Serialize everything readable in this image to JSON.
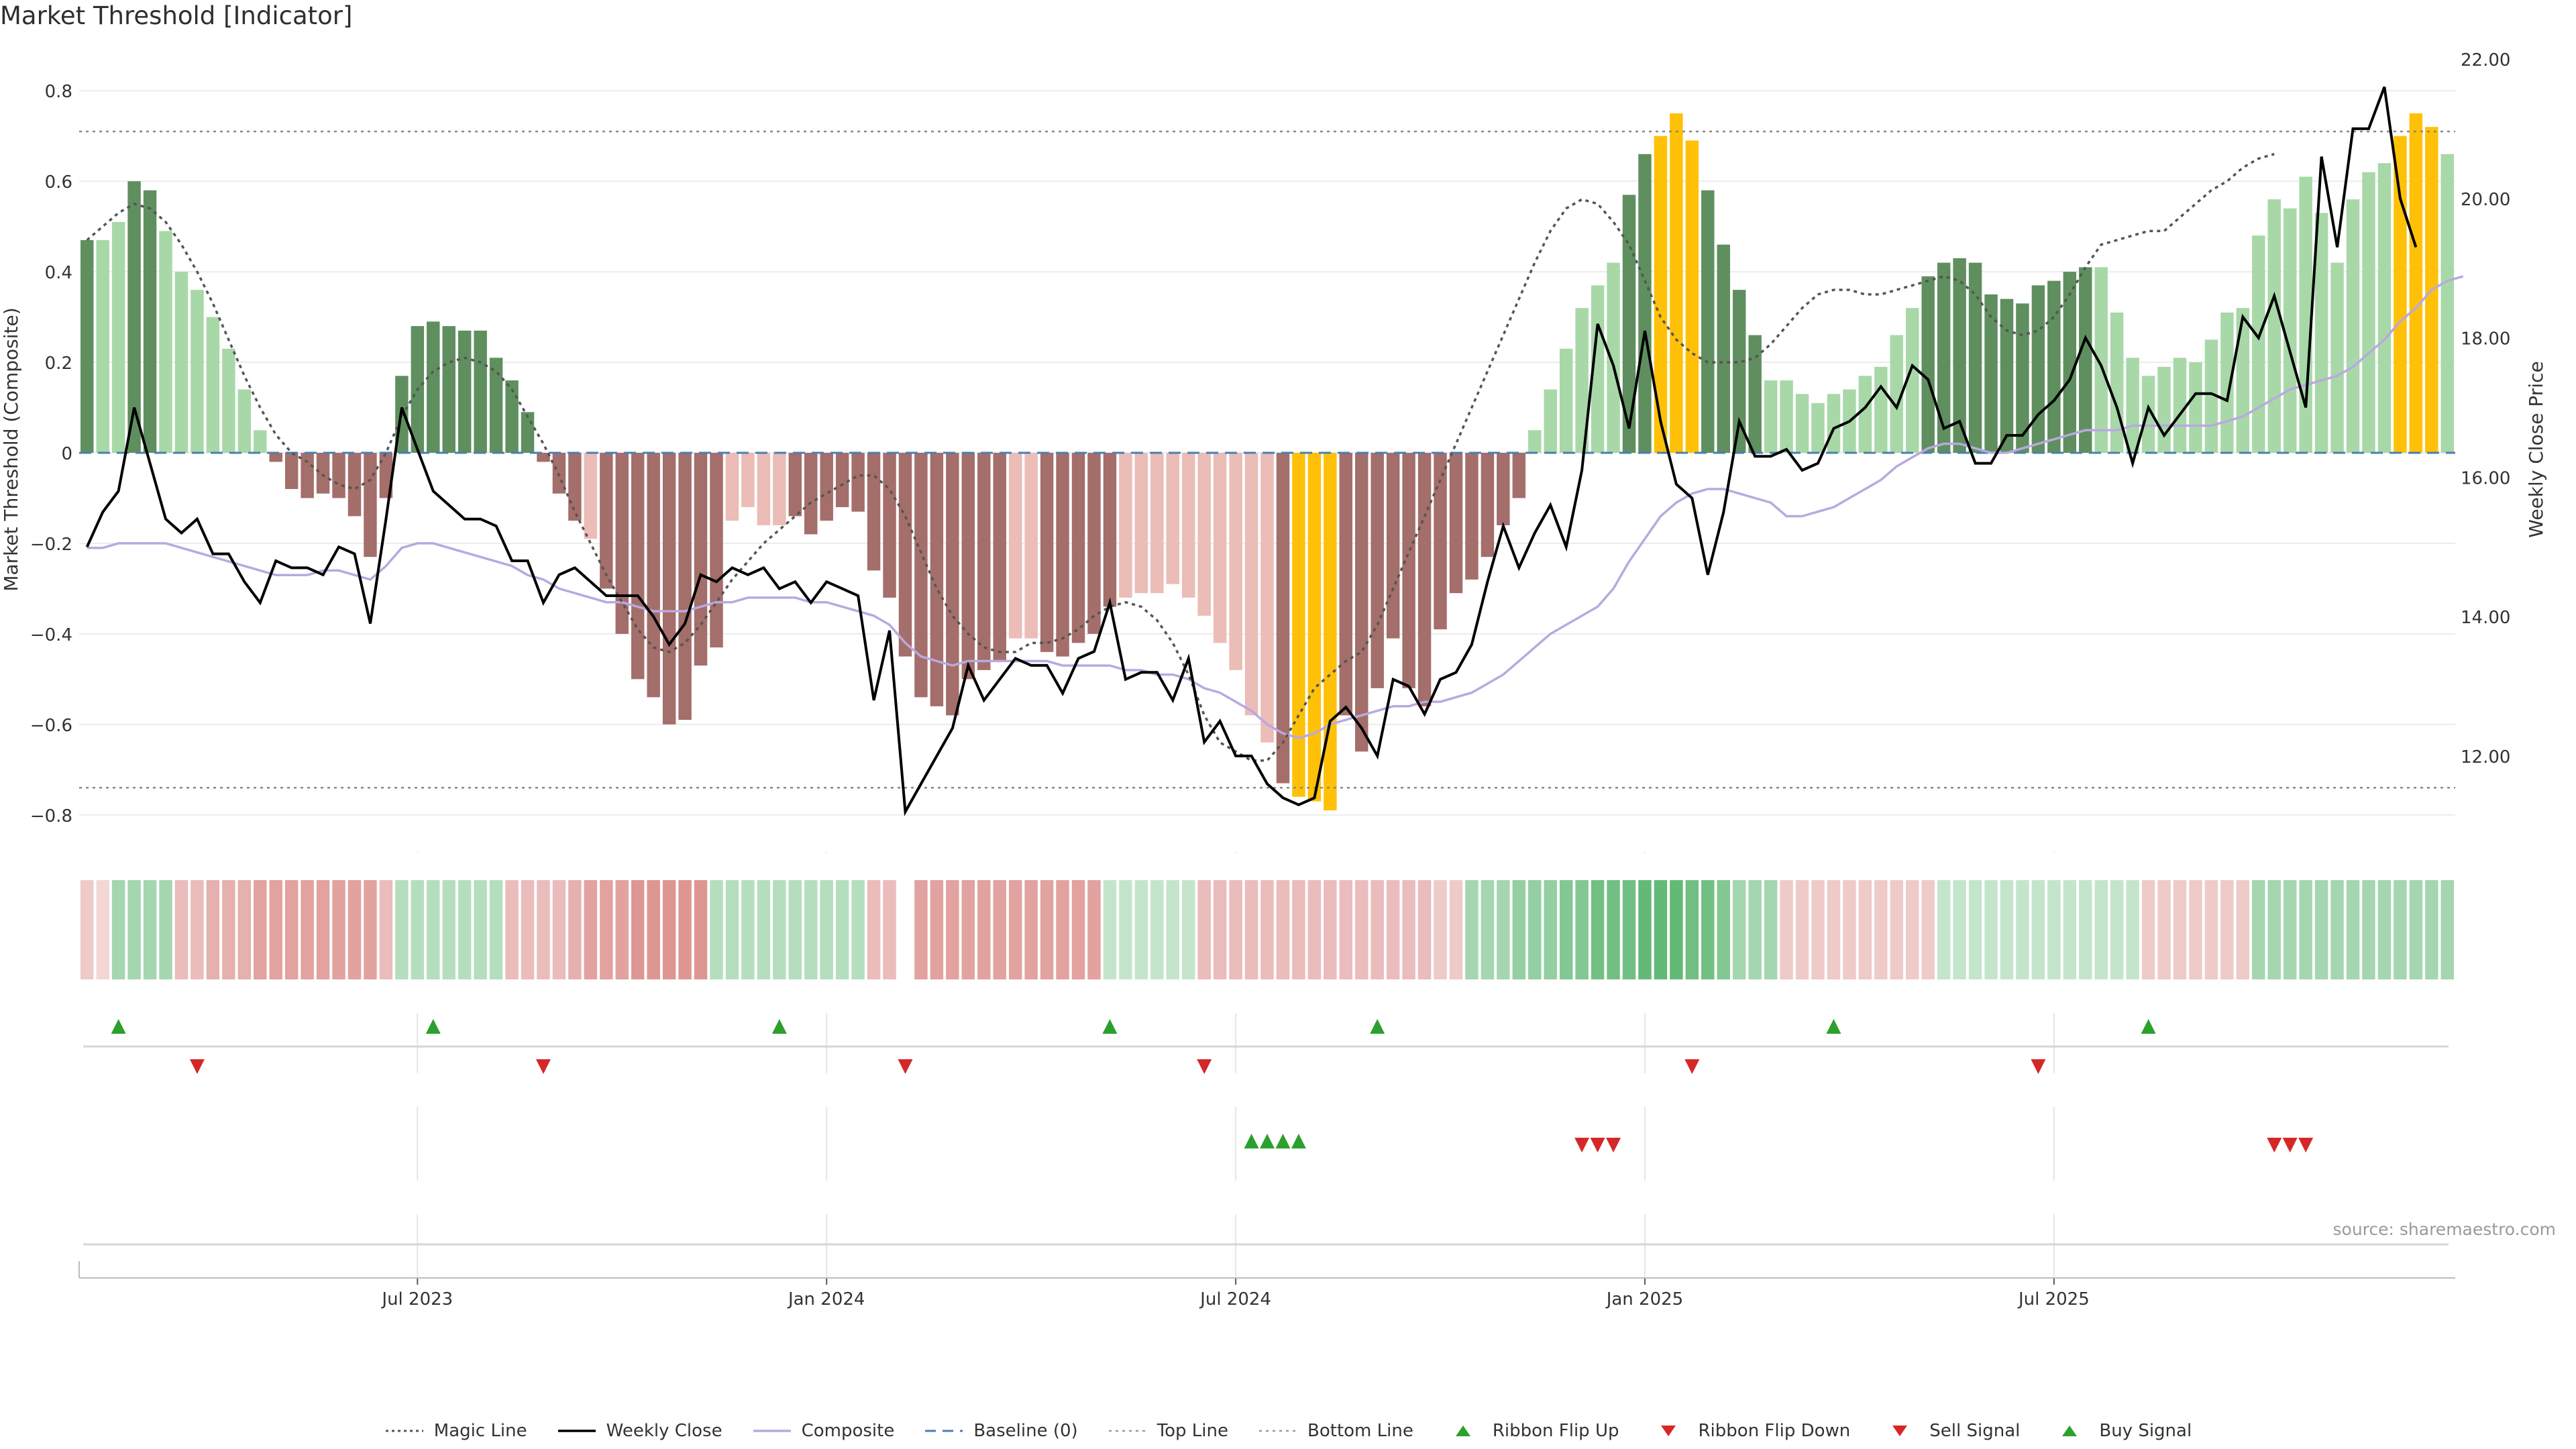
{
  "title": "Market Threshold [Indicator]",
  "source": "source: sharemaestro.com",
  "colors": {
    "bar_green_dark": "#5f8f5f",
    "bar_green_light": "#a8d8a8",
    "bar_red_dark": "#a46e6a",
    "bar_red_light": "#ecbcb6",
    "bar_gold": "#ffc107",
    "magic_line": "#555555",
    "weekly_close": "#000000",
    "composite": "#b8a9e0",
    "baseline": "#4a7fb0",
    "threshold_line": "#888888",
    "signal_up": "#2ca02c",
    "signal_down": "#d62728"
  },
  "chart_data": {
    "type": "bar",
    "ylabel_left": "Market Threshold (Composite)",
    "ylabel_right": "Weekly Close Price",
    "ylim_left": [
      -0.87,
      0.87
    ],
    "ylim_right": [
      10.7,
      22.0
    ],
    "yticks_left": [
      "0.8",
      "0.6",
      "0.4",
      "0.2",
      "0",
      "−0.2",
      "−0.4",
      "−0.6",
      "−0.8"
    ],
    "yticks_right": [
      "22.00",
      "20.00",
      "18.00",
      "16.00",
      "14.00",
      "12.00"
    ],
    "xticks": [
      "Jul 2023",
      "Jan 2024",
      "Jul 2024",
      "Jan 2025",
      "Jul 2025"
    ],
    "top_line": 0.71,
    "bottom_line": -0.74,
    "threshold_bars": [
      0.47,
      0.47,
      0.51,
      0.6,
      0.58,
      0.49,
      0.4,
      0.36,
      0.3,
      0.23,
      0.14,
      0.05,
      -0.02,
      -0.08,
      -0.1,
      -0.09,
      -0.1,
      -0.14,
      -0.23,
      -0.1,
      0.17,
      0.28,
      0.29,
      0.28,
      0.27,
      0.27,
      0.21,
      0.16,
      0.09,
      -0.02,
      -0.09,
      -0.15,
      -0.19,
      -0.3,
      -0.4,
      -0.5,
      -0.54,
      -0.6,
      -0.59,
      -0.47,
      -0.43,
      -0.15,
      -0.12,
      -0.16,
      -0.16,
      -0.14,
      -0.18,
      -0.15,
      -0.12,
      -0.13,
      -0.26,
      -0.32,
      -0.45,
      -0.54,
      -0.56,
      -0.58,
      -0.5,
      -0.48,
      -0.46,
      -0.41,
      -0.41,
      -0.44,
      -0.45,
      -0.42,
      -0.4,
      -0.34,
      -0.32,
      -0.31,
      -0.31,
      -0.29,
      -0.32,
      -0.36,
      -0.42,
      -0.48,
      -0.58,
      -0.64,
      -0.73,
      -0.76,
      -0.77,
      -0.79,
      -0.58,
      -0.66,
      -0.52,
      -0.41,
      -0.52,
      -0.56,
      -0.39,
      -0.31,
      -0.28,
      -0.23,
      -0.16,
      -0.1,
      0.05,
      0.14,
      0.23,
      0.32,
      0.37,
      0.42,
      0.57,
      0.66,
      0.7,
      0.75,
      0.69,
      0.58,
      0.46,
      0.36,
      0.26,
      0.16,
      0.16,
      0.13,
      0.11,
      0.13,
      0.14,
      0.17,
      0.19,
      0.26,
      0.32,
      0.39,
      0.42,
      0.43,
      0.42,
      0.35,
      0.34,
      0.33,
      0.37,
      0.38,
      0.4,
      0.41,
      0.41,
      0.31,
      0.21,
      0.17,
      0.19,
      0.21,
      0.2,
      0.25,
      0.31,
      0.32,
      0.48,
      0.56,
      0.54,
      0.61,
      0.53,
      0.42,
      0.56,
      0.62,
      0.64,
      0.7,
      0.75,
      0.72,
      0.66
    ],
    "magic_line": [
      0.47,
      0.5,
      0.53,
      0.55,
      0.54,
      0.51,
      0.46,
      0.4,
      0.33,
      0.25,
      0.17,
      0.1,
      0.04,
      0.0,
      -0.02,
      -0.05,
      -0.07,
      -0.08,
      -0.06,
      0.0,
      0.08,
      0.14,
      0.18,
      0.2,
      0.21,
      0.2,
      0.18,
      0.14,
      0.08,
      0.02,
      -0.05,
      -0.13,
      -0.2,
      -0.27,
      -0.33,
      -0.39,
      -0.43,
      -0.44,
      -0.42,
      -0.38,
      -0.33,
      -0.28,
      -0.24,
      -0.2,
      -0.17,
      -0.14,
      -0.11,
      -0.09,
      -0.07,
      -0.05,
      -0.05,
      -0.08,
      -0.14,
      -0.22,
      -0.3,
      -0.36,
      -0.4,
      -0.43,
      -0.44,
      -0.44,
      -0.42,
      -0.42,
      -0.41,
      -0.39,
      -0.36,
      -0.34,
      -0.33,
      -0.34,
      -0.37,
      -0.42,
      -0.49,
      -0.58,
      -0.64,
      -0.66,
      -0.68,
      -0.68,
      -0.64,
      -0.58,
      -0.52,
      -0.49,
      -0.46,
      -0.44,
      -0.38,
      -0.3,
      -0.22,
      -0.14,
      -0.06,
      0.02,
      0.1,
      0.18,
      0.26,
      0.34,
      0.42,
      0.49,
      0.54,
      0.56,
      0.55,
      0.51,
      0.46,
      0.38,
      0.3,
      0.25,
      0.22,
      0.2,
      0.2,
      0.2,
      0.21,
      0.24,
      0.28,
      0.32,
      0.35,
      0.36,
      0.36,
      0.35,
      0.35,
      0.36,
      0.37,
      0.38,
      0.39,
      0.38,
      0.35,
      0.3,
      0.27,
      0.26,
      0.27,
      0.3,
      0.35,
      0.41,
      0.46,
      0.47,
      0.48,
      0.49,
      0.49,
      0.52,
      0.55,
      0.58,
      0.6,
      0.63,
      0.65,
      0.66
    ],
    "weekly_close": [
      15.0,
      15.5,
      15.8,
      17.0,
      16.2,
      15.4,
      15.2,
      15.4,
      14.9,
      14.9,
      14.5,
      14.2,
      14.8,
      14.7,
      14.7,
      14.6,
      15.0,
      14.9,
      13.9,
      15.4,
      17.0,
      16.4,
      15.8,
      15.6,
      15.4,
      15.4,
      15.3,
      14.8,
      14.8,
      14.2,
      14.6,
      14.7,
      14.5,
      14.3,
      14.3,
      14.3,
      14.0,
      13.6,
      13.9,
      14.6,
      14.5,
      14.7,
      14.6,
      14.7,
      14.4,
      14.5,
      14.2,
      14.5,
      14.4,
      14.3,
      12.8,
      13.8,
      11.2,
      11.6,
      12.0,
      12.4,
      13.3,
      12.8,
      13.1,
      13.4,
      13.3,
      13.3,
      12.9,
      13.4,
      13.5,
      14.2,
      13.1,
      13.2,
      13.2,
      12.8,
      13.4,
      12.2,
      12.5,
      12.0,
      12.0,
      11.6,
      11.4,
      11.3,
      11.4,
      12.5,
      12.7,
      12.4,
      12.0,
      13.1,
      13.0,
      12.6,
      13.1,
      13.2,
      13.6,
      14.5,
      15.3,
      14.7,
      15.2,
      15.6,
      15.0,
      16.1,
      18.2,
      17.6,
      16.7,
      18.1,
      16.8,
      15.9,
      15.7,
      14.6,
      15.5,
      16.8,
      16.3,
      16.3,
      16.4,
      16.1,
      16.2,
      16.7,
      16.8,
      17.0,
      17.3,
      17.0,
      17.6,
      17.4,
      16.7,
      16.8,
      16.2,
      16.2,
      16.6,
      16.6,
      16.9,
      17.1,
      17.4,
      18.0,
      17.6,
      17.0,
      16.2,
      17.0,
      16.6,
      16.9,
      17.2,
      17.2,
      17.1,
      18.3,
      18.0,
      18.6,
      17.8,
      17.0,
      20.6,
      19.3,
      21.0,
      21.0,
      21.6,
      20.0,
      19.3
    ],
    "composite": [
      -0.21,
      -0.21,
      -0.2,
      -0.2,
      -0.2,
      -0.2,
      -0.21,
      -0.22,
      -0.23,
      -0.24,
      -0.25,
      -0.26,
      -0.27,
      -0.27,
      -0.27,
      -0.26,
      -0.26,
      -0.27,
      -0.28,
      -0.25,
      -0.21,
      -0.2,
      -0.2,
      -0.21,
      -0.22,
      -0.23,
      -0.24,
      -0.25,
      -0.27,
      -0.28,
      -0.3,
      -0.31,
      -0.32,
      -0.33,
      -0.33,
      -0.34,
      -0.35,
      -0.35,
      -0.35,
      -0.34,
      -0.33,
      -0.33,
      -0.32,
      -0.32,
      -0.32,
      -0.32,
      -0.33,
      -0.33,
      -0.34,
      -0.35,
      -0.36,
      -0.38,
      -0.42,
      -0.45,
      -0.46,
      -0.47,
      -0.46,
      -0.46,
      -0.46,
      -0.46,
      -0.46,
      -0.46,
      -0.47,
      -0.47,
      -0.47,
      -0.47,
      -0.48,
      -0.48,
      -0.49,
      -0.49,
      -0.5,
      -0.52,
      -0.53,
      -0.55,
      -0.57,
      -0.6,
      -0.62,
      -0.63,
      -0.62,
      -0.6,
      -0.59,
      -0.58,
      -0.57,
      -0.56,
      -0.56,
      -0.55,
      -0.55,
      -0.54,
      -0.53,
      -0.51,
      -0.49,
      -0.46,
      -0.43,
      -0.4,
      -0.38,
      -0.36,
      -0.34,
      -0.3,
      -0.24,
      -0.19,
      -0.14,
      -0.11,
      -0.09,
      -0.08,
      -0.08,
      -0.09,
      -0.1,
      -0.11,
      -0.14,
      -0.14,
      -0.13,
      -0.12,
      -0.1,
      -0.08,
      -0.06,
      -0.03,
      -0.01,
      0.01,
      0.02,
      0.02,
      0.01,
      0.0,
      0.0,
      0.01,
      0.02,
      0.03,
      0.04,
      0.05,
      0.05,
      0.05,
      0.06,
      0.06,
      0.06,
      0.06,
      0.06,
      0.06,
      0.07,
      0.08,
      0.1,
      0.12,
      0.14,
      0.15,
      0.16,
      0.17,
      0.19,
      0.22,
      0.25,
      0.29,
      0.32,
      0.36,
      0.38,
      0.39
    ],
    "ribbon": [
      -0.2,
      -0.1,
      0.4,
      0.4,
      0.4,
      0.4,
      -0.3,
      -0.3,
      -0.4,
      -0.4,
      -0.4,
      -0.5,
      -0.5,
      -0.5,
      -0.5,
      -0.5,
      -0.5,
      -0.5,
      -0.5,
      -0.3,
      0.3,
      0.3,
      0.3,
      0.3,
      0.3,
      0.3,
      0.3,
      -0.3,
      -0.3,
      -0.3,
      -0.3,
      -0.4,
      -0.5,
      -0.5,
      -0.5,
      -0.6,
      -0.6,
      -0.6,
      -0.6,
      -0.6,
      0.3,
      0.3,
      0.3,
      0.3,
      0.3,
      0.3,
      0.3,
      0.3,
      0.3,
      0.3,
      -0.3,
      -0.3,
      null,
      -0.5,
      -0.5,
      -0.5,
      -0.5,
      -0.5,
      -0.5,
      -0.5,
      -0.5,
      -0.5,
      -0.5,
      -0.5,
      -0.5,
      0.2,
      0.2,
      0.2,
      0.2,
      0.2,
      0.2,
      -0.3,
      -0.3,
      -0.3,
      -0.3,
      -0.3,
      -0.3,
      -0.3,
      -0.3,
      -0.3,
      -0.3,
      -0.3,
      -0.3,
      -0.3,
      -0.3,
      -0.3,
      -0.2,
      -0.2,
      0.4,
      0.4,
      0.4,
      0.5,
      0.5,
      0.5,
      0.6,
      0.6,
      0.7,
      0.7,
      0.7,
      0.8,
      0.8,
      0.8,
      0.7,
      0.7,
      0.6,
      0.4,
      0.4,
      0.4,
      -0.2,
      -0.2,
      -0.2,
      -0.2,
      -0.2,
      -0.2,
      -0.2,
      -0.2,
      -0.2,
      -0.2,
      0.2,
      0.2,
      0.2,
      0.2,
      0.2,
      0.2,
      0.2,
      0.2,
      0.2,
      0.2,
      0.2,
      0.2,
      0.2,
      -0.2,
      -0.2,
      -0.2,
      -0.2,
      -0.2,
      -0.2,
      -0.2,
      0.4,
      0.4,
      0.4,
      0.4,
      0.4,
      0.4,
      0.4,
      0.4,
      0.4,
      0.4,
      0.4,
      0.4,
      0.4
    ],
    "ribbon_flip_up": [
      2,
      22,
      44,
      65,
      82,
      111,
      131
    ],
    "ribbon_flip_down": [
      7,
      29,
      52,
      71,
      102,
      124
    ],
    "buy_signals": [
      74,
      75,
      76,
      77
    ],
    "sell_signals": [
      95,
      96,
      97,
      139,
      140,
      141
    ]
  },
  "legend": [
    {
      "label": "Magic Line",
      "icon": "dotted-line"
    },
    {
      "label": "Weekly Close",
      "icon": "solid-line"
    },
    {
      "label": "Composite",
      "icon": "solid-line-lavender"
    },
    {
      "label": "Baseline (0)",
      "icon": "dashed-line"
    },
    {
      "label": "Top Line",
      "icon": "dotted-line-light"
    },
    {
      "label": "Bottom Line",
      "icon": "dotted-line-light"
    },
    {
      "label": "Ribbon Flip Up",
      "icon": "triangle-up-icon"
    },
    {
      "label": "Ribbon Flip Down",
      "icon": "triangle-down-icon"
    },
    {
      "label": "Sell Signal",
      "icon": "triangle-down-icon"
    },
    {
      "label": "Buy Signal",
      "icon": "triangle-up-icon"
    }
  ]
}
